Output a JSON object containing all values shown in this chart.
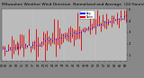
{
  "title": "Milwaukee Weather Wind Direction  Normalized and Average  (24 Hours) (Old)",
  "fig_bg": "#888888",
  "plot_bg": "#bbbbbb",
  "ylim": [
    0.5,
    5.0
  ],
  "ytick_vals": [
    1,
    2,
    3,
    4,
    5
  ],
  "ytick_labels": [
    "1",
    "2",
    "3",
    "4",
    "5"
  ],
  "n_points": 70,
  "red_color": "#dd0000",
  "blue_color": "#0000ee",
  "title_fontsize": 3.2,
  "tick_fontsize": 2.8,
  "seed": 10
}
